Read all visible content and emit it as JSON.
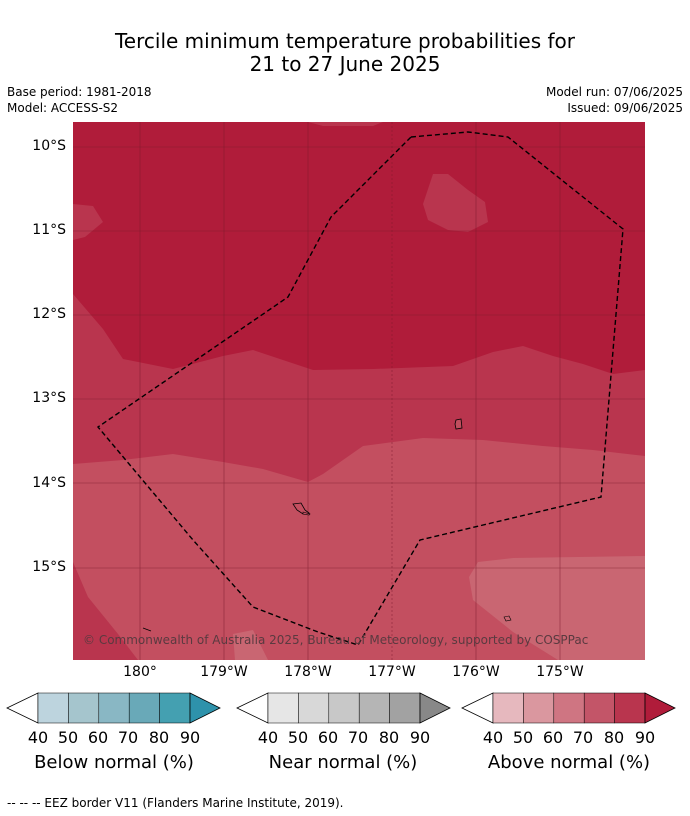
{
  "title_line1": "Tercile minimum temperature probabilities for",
  "title_line2": "21 to 27 June 2025",
  "base_period": "Base period: 1981-2018",
  "model": "Model: ACCESS-S2",
  "model_run": "Model run: 07/06/2025",
  "issued": "Issued: 09/06/2025",
  "lat_labels": [
    "10°S",
    "11°S",
    "12°S",
    "13°S",
    "14°S",
    "15°S"
  ],
  "lon_labels": [
    "180°",
    "179°W",
    "178°W",
    "177°W",
    "176°W",
    "175°W"
  ],
  "copyright": "© Commonwealth of Australia 2025, Bureau of Meteorology, supported by COSPPac",
  "legends": [
    {
      "title": "Below normal (%)",
      "colors": [
        "#bdd4de",
        "#a5c5cd",
        "#89b7c4",
        "#69a9b8",
        "#44a0b1",
        "#2e92ab"
      ]
    },
    {
      "title": "Near normal (%)",
      "colors": [
        "#e6e6e6",
        "#d8d8d8",
        "#c8c8c8",
        "#b5b5b5",
        "#a2a2a2",
        "#888888"
      ]
    },
    {
      "title": "Above normal (%)",
      "colors": [
        "#e6b8be",
        "#da979f",
        "#cf7582",
        "#c35568",
        "#b9354e",
        "#b01c3a"
      ]
    }
  ],
  "legend_ticks": [
    "40",
    "50",
    "60",
    "70",
    "80",
    "90"
  ],
  "footer": "-- -- -- EEZ border V11 (Flanders Marine Institute, 2019)."
}
